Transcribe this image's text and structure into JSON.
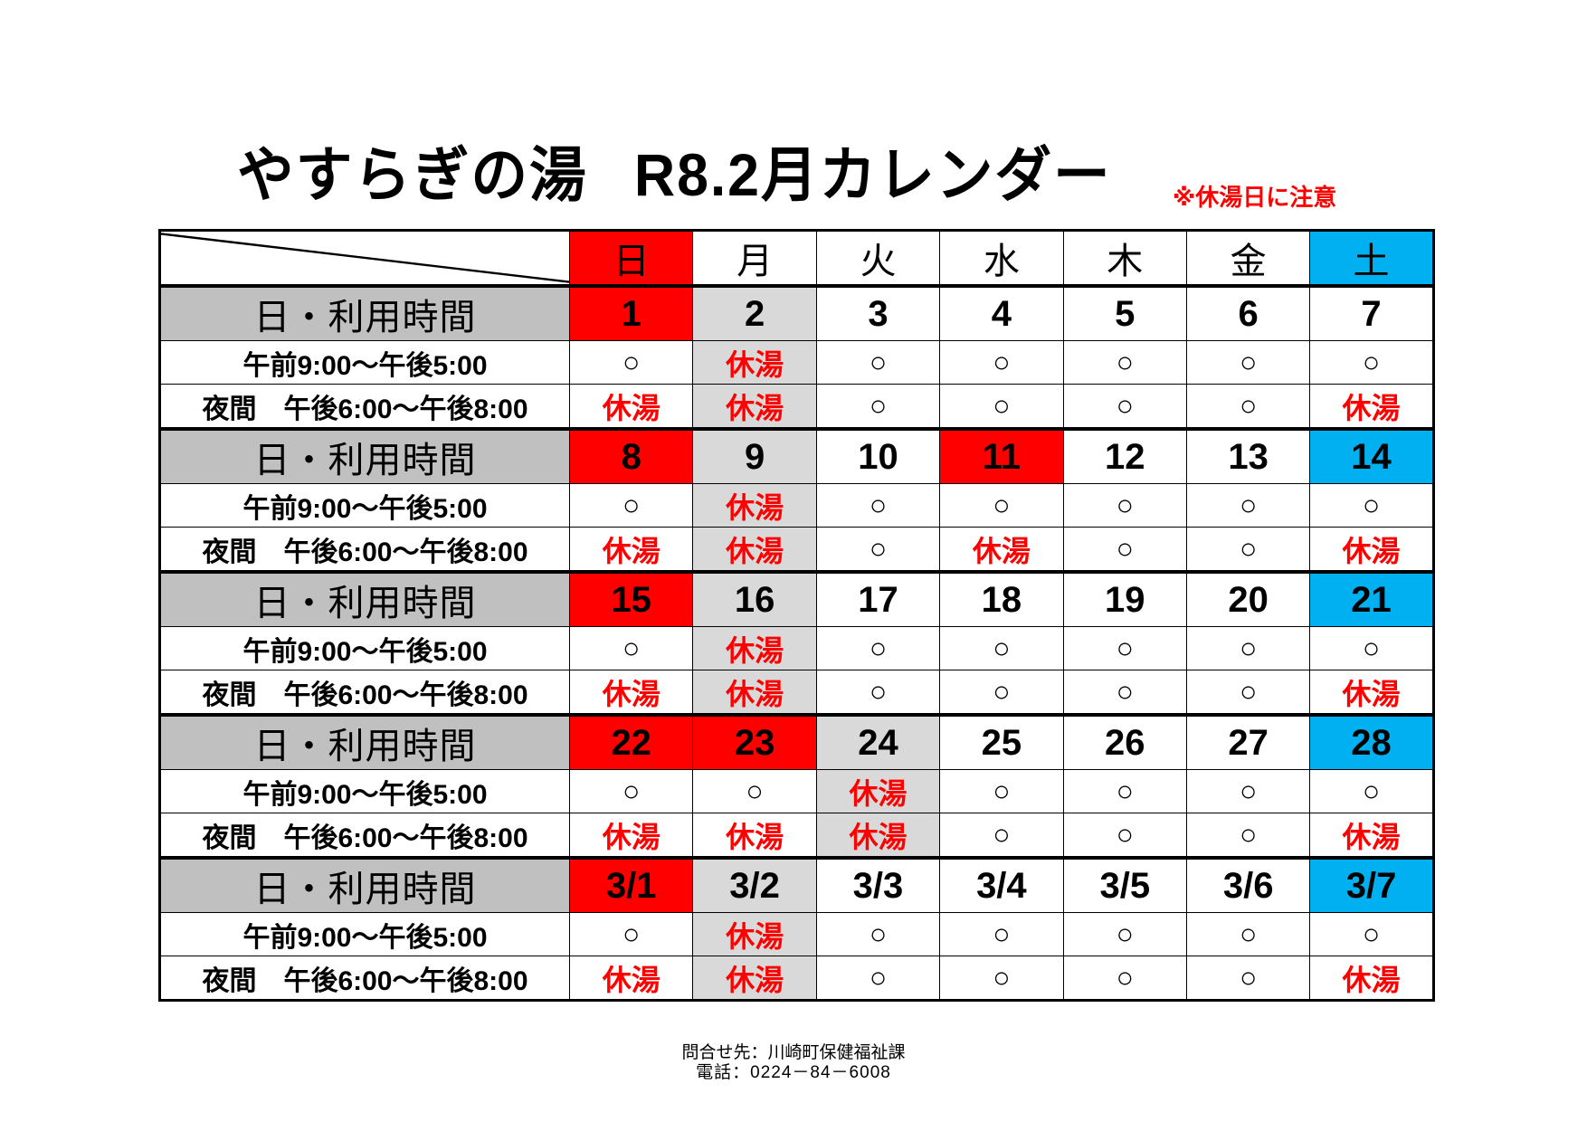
{
  "title": {
    "main": "やすらぎの湯",
    "sub": "R8.2月カレンダー",
    "note": "※休湯日に注意"
  },
  "colors": {
    "sunday_holiday": "#ff0000",
    "saturday": "#00b0f0",
    "closed_day": "#d9d9d9",
    "label_gray": "#c0c0c0",
    "closed_text": "#ff0000"
  },
  "header": {
    "weekdays": [
      {
        "label": "日",
        "bg": "red"
      },
      {
        "label": "月",
        "bg": "white"
      },
      {
        "label": "火",
        "bg": "white"
      },
      {
        "label": "水",
        "bg": "white"
      },
      {
        "label": "木",
        "bg": "white"
      },
      {
        "label": "金",
        "bg": "white"
      },
      {
        "label": "土",
        "bg": "blue"
      }
    ]
  },
  "row_labels": {
    "date": "日・利用時間",
    "morning": "午前9:00～午後5:00",
    "evening": "夜間　午後6:00～午後8:00"
  },
  "symbols": {
    "open": "○",
    "closed": "休湯"
  },
  "weeks": [
    {
      "dates": [
        "1",
        "2",
        "3",
        "4",
        "5",
        "6",
        "7"
      ],
      "date_bg": [
        "red",
        "gray",
        "white",
        "white",
        "white",
        "white",
        "white"
      ],
      "col_bg": [
        "white",
        "gray",
        "white",
        "white",
        "white",
        "white",
        "white"
      ],
      "morning": [
        "○",
        "休湯",
        "○",
        "○",
        "○",
        "○",
        "○"
      ],
      "evening": [
        "休湯",
        "休湯",
        "○",
        "○",
        "○",
        "○",
        "休湯"
      ]
    },
    {
      "dates": [
        "8",
        "9",
        "10",
        "11",
        "12",
        "13",
        "14"
      ],
      "date_bg": [
        "red",
        "gray",
        "white",
        "red",
        "white",
        "white",
        "blue"
      ],
      "col_bg": [
        "white",
        "gray",
        "white",
        "white",
        "white",
        "white",
        "white"
      ],
      "morning": [
        "○",
        "休湯",
        "○",
        "○",
        "○",
        "○",
        "○"
      ],
      "evening": [
        "休湯",
        "休湯",
        "○",
        "休湯",
        "○",
        "○",
        "休湯"
      ]
    },
    {
      "dates": [
        "15",
        "16",
        "17",
        "18",
        "19",
        "20",
        "21"
      ],
      "date_bg": [
        "red",
        "gray",
        "white",
        "white",
        "white",
        "white",
        "blue"
      ],
      "col_bg": [
        "white",
        "gray",
        "white",
        "white",
        "white",
        "white",
        "white"
      ],
      "morning": [
        "○",
        "休湯",
        "○",
        "○",
        "○",
        "○",
        "○"
      ],
      "evening": [
        "休湯",
        "休湯",
        "○",
        "○",
        "○",
        "○",
        "休湯"
      ]
    },
    {
      "dates": [
        "22",
        "23",
        "24",
        "25",
        "26",
        "27",
        "28"
      ],
      "date_bg": [
        "red",
        "red",
        "gray",
        "white",
        "white",
        "white",
        "blue"
      ],
      "col_bg": [
        "white",
        "white",
        "gray",
        "white",
        "white",
        "white",
        "white"
      ],
      "morning": [
        "○",
        "○",
        "休湯",
        "○",
        "○",
        "○",
        "○"
      ],
      "evening": [
        "休湯",
        "休湯",
        "休湯",
        "○",
        "○",
        "○",
        "休湯"
      ]
    },
    {
      "dates": [
        "3/1",
        "3/2",
        "3/3",
        "3/4",
        "3/5",
        "3/6",
        "3/7"
      ],
      "date_bg": [
        "red",
        "gray",
        "white",
        "white",
        "white",
        "white",
        "blue"
      ],
      "col_bg": [
        "white",
        "gray",
        "white",
        "white",
        "white",
        "white",
        "white"
      ],
      "morning": [
        "○",
        "休湯",
        "○",
        "○",
        "○",
        "○",
        "○"
      ],
      "evening": [
        "休湯",
        "休湯",
        "○",
        "○",
        "○",
        "○",
        "休湯"
      ]
    }
  ],
  "footer": {
    "contact": "問合せ先：川崎町保健福祉課",
    "phone": "電話：0224－84－6008"
  }
}
